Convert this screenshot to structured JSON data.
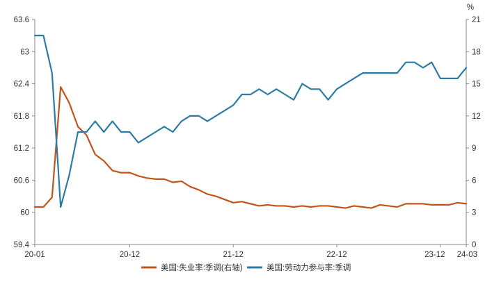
{
  "chart_data": {
    "type": "line",
    "x_tick_labels": [
      "20-01",
      "20-12",
      "21-12",
      "22-12",
      "23-12",
      "24-03"
    ],
    "x_tick_months": [
      0,
      11,
      23,
      35,
      47,
      50
    ],
    "y_left_ticks": [
      "59.4",
      "60",
      "60.6",
      "61.2",
      "61.8",
      "62.4",
      "63",
      "63.6"
    ],
    "y_left_lim": [
      59.4,
      63.6
    ],
    "y_right_ticks": [
      "0",
      "3",
      "6",
      "9",
      "12",
      "15",
      "18",
      "21"
    ],
    "y_right_lim": [
      0,
      21
    ],
    "y_right_unit": "%",
    "grid": false,
    "legend_position": "bottom",
    "colors": {
      "unemployment": "#C0541C",
      "participation": "#2D7BA4",
      "axis": "#888888",
      "text": "#333333"
    },
    "series": [
      {
        "name": "美国:失业率:季调(右轴)",
        "axis": "right",
        "color": "#C0541C",
        "values": [
          3.5,
          3.5,
          4.4,
          14.7,
          13.2,
          11.0,
          10.2,
          8.4,
          7.8,
          6.9,
          6.7,
          6.7,
          6.4,
          6.2,
          6.1,
          6.1,
          5.8,
          5.9,
          5.4,
          5.1,
          4.7,
          4.5,
          4.2,
          3.9,
          4.0,
          3.8,
          3.6,
          3.7,
          3.6,
          3.6,
          3.5,
          3.6,
          3.5,
          3.6,
          3.6,
          3.5,
          3.4,
          3.6,
          3.5,
          3.4,
          3.7,
          3.6,
          3.5,
          3.8,
          3.8,
          3.8,
          3.7,
          3.7,
          3.7,
          3.9,
          3.8
        ]
      },
      {
        "name": "美国:劳动力参与率:季调",
        "axis": "left",
        "color": "#2D7BA4",
        "values": [
          63.3,
          63.3,
          62.6,
          60.1,
          60.7,
          61.5,
          61.5,
          61.7,
          61.5,
          61.7,
          61.5,
          61.5,
          61.3,
          61.4,
          61.5,
          61.6,
          61.5,
          61.7,
          61.8,
          61.8,
          61.7,
          61.8,
          61.9,
          62.0,
          62.2,
          62.2,
          62.3,
          62.2,
          62.3,
          62.2,
          62.1,
          62.4,
          62.3,
          62.3,
          62.1,
          62.3,
          62.4,
          62.5,
          62.6,
          62.6,
          62.6,
          62.6,
          62.6,
          62.8,
          62.8,
          62.7,
          62.8,
          62.5,
          62.5,
          62.5,
          62.7
        ]
      }
    ]
  }
}
